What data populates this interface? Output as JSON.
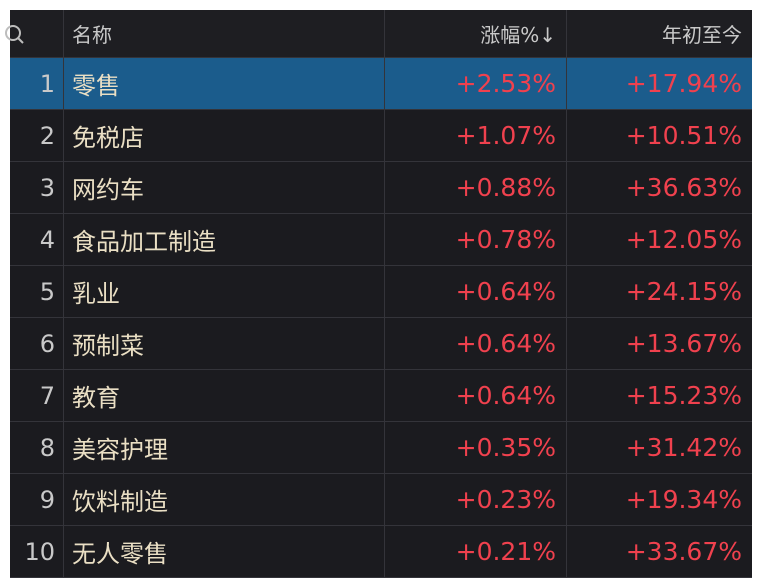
{
  "header": {
    "search_icon": "search-icon",
    "name": "名称",
    "change": "涨幅%↓",
    "ytd": "年初至今"
  },
  "colors": {
    "selected_row": "#1b5c8c",
    "positive": "#f0414e",
    "background": "#1b1b1f"
  },
  "selected_index": 0,
  "rows": [
    {
      "rank": "1",
      "name": "零售",
      "change": "+2.53%",
      "ytd": "+17.94%"
    },
    {
      "rank": "2",
      "name": "免税店",
      "change": "+1.07%",
      "ytd": "+10.51%"
    },
    {
      "rank": "3",
      "name": "网约车",
      "change": "+0.88%",
      "ytd": "+36.63%"
    },
    {
      "rank": "4",
      "name": "食品加工制造",
      "change": "+0.78%",
      "ytd": "+12.05%"
    },
    {
      "rank": "5",
      "name": "乳业",
      "change": "+0.64%",
      "ytd": "+24.15%"
    },
    {
      "rank": "6",
      "name": "预制菜",
      "change": "+0.64%",
      "ytd": "+13.67%"
    },
    {
      "rank": "7",
      "name": "教育",
      "change": "+0.64%",
      "ytd": "+15.23%"
    },
    {
      "rank": "8",
      "name": "美容护理",
      "change": "+0.35%",
      "ytd": "+31.42%"
    },
    {
      "rank": "9",
      "name": "饮料制造",
      "change": "+0.23%",
      "ytd": "+19.34%"
    },
    {
      "rank": "10",
      "name": "无人零售",
      "change": "+0.21%",
      "ytd": "+33.67%"
    }
  ]
}
